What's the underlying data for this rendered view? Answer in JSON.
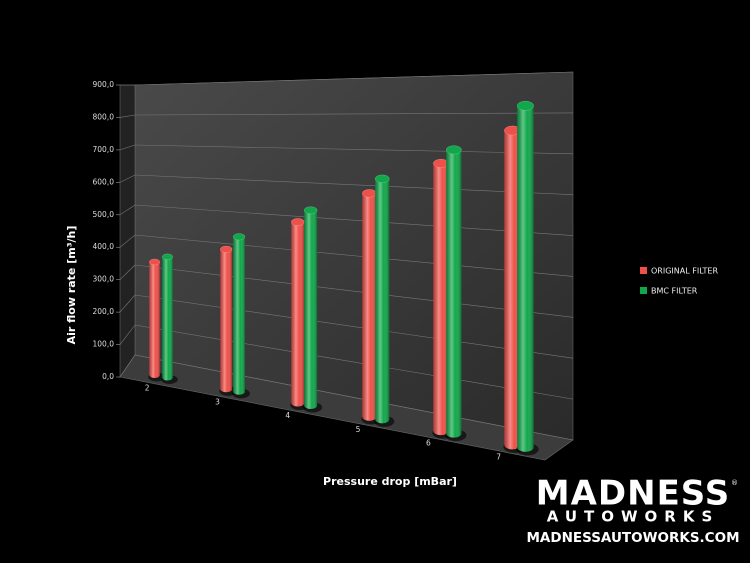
{
  "chart_data": {
    "type": "bar3d",
    "xlabel": "Pressure drop [mBar]",
    "ylabel": "Air flow rate [m³/h]",
    "categories": [
      "2",
      "3",
      "4",
      "5",
      "6",
      "7"
    ],
    "series": [
      {
        "name": "ORIGINAL FILTER",
        "color": "#f0504a",
        "values": [
          350,
          410,
          505,
          595,
          680,
          765
        ]
      },
      {
        "name": "BMC FILTER",
        "color": "#10a84a",
        "values": [
          370,
          450,
          540,
          635,
          715,
          825
        ]
      }
    ],
    "ylim": [
      0,
      900
    ],
    "yticks": [
      {
        "value": 0,
        "label": "0,0"
      },
      {
        "value": 100,
        "label": "100,0"
      },
      {
        "value": 200,
        "label": "200,0"
      },
      {
        "value": 300,
        "label": "300,0"
      },
      {
        "value": 400,
        "label": "400,0"
      },
      {
        "value": 500,
        "label": "500,0"
      },
      {
        "value": 600,
        "label": "600,0"
      },
      {
        "value": 700,
        "label": "700,0"
      },
      {
        "value": 800,
        "label": "800,0"
      },
      {
        "value": 900,
        "label": "900,0"
      }
    ],
    "grid": true,
    "legend": "right"
  },
  "logo": {
    "name": "MADNESS",
    "mark": "®",
    "sub": "AUTOWORKS",
    "url": "MADNESSAUTOWORKS.COM"
  }
}
